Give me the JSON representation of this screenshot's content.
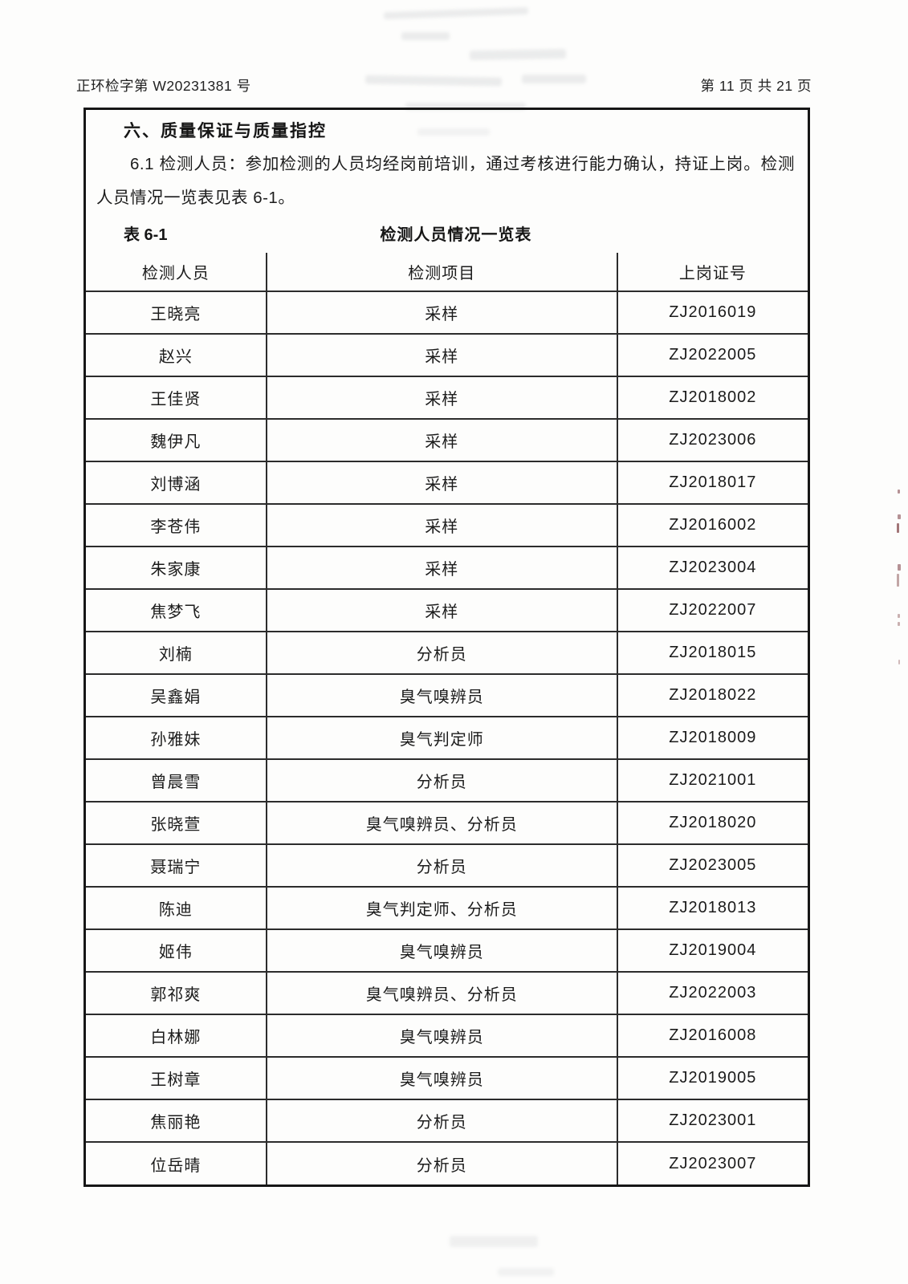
{
  "page_header": {
    "left": "正环检字第 W20231381 号",
    "right": "第 11 页 共 21 页"
  },
  "section": {
    "title": "六、质量保证与质量指控"
  },
  "paragraph": "6.1 检测人员：参加检测的人员均经岗前培训，通过考核进行能力确认，持证上岗。检测人员情况一览表见表 6-1。",
  "table_caption": {
    "label": "表 6-1",
    "title": "检测人员情况一览表"
  },
  "table": {
    "headers": [
      "检测人员",
      "检测项目",
      "上岗证号"
    ],
    "rows": [
      [
        "王晓亮",
        "采样",
        "ZJ2016019"
      ],
      [
        "赵兴",
        "采样",
        "ZJ2022005"
      ],
      [
        "王佳贤",
        "采样",
        "ZJ2018002"
      ],
      [
        "魏伊凡",
        "采样",
        "ZJ2023006"
      ],
      [
        "刘博涵",
        "采样",
        "ZJ2018017"
      ],
      [
        "李苍伟",
        "采样",
        "ZJ2016002"
      ],
      [
        "朱家康",
        "采样",
        "ZJ2023004"
      ],
      [
        "焦梦飞",
        "采样",
        "ZJ2022007"
      ],
      [
        "刘楠",
        "分析员",
        "ZJ2018015"
      ],
      [
        "吴鑫娟",
        "臭气嗅辨员",
        "ZJ2018022"
      ],
      [
        "孙雅妹",
        "臭气判定师",
        "ZJ2018009"
      ],
      [
        "曾晨雪",
        "分析员",
        "ZJ2021001"
      ],
      [
        "张晓萱",
        "臭气嗅辨员、分析员",
        "ZJ2018020"
      ],
      [
        "聂瑞宁",
        "分析员",
        "ZJ2023005"
      ],
      [
        "陈迪",
        "臭气判定师、分析员",
        "ZJ2018013"
      ],
      [
        "姬伟",
        "臭气嗅辨员",
        "ZJ2019004"
      ],
      [
        "郭祁爽",
        "臭气嗅辨员、分析员",
        "ZJ2022003"
      ],
      [
        "白林娜",
        "臭气嗅辨员",
        "ZJ2016008"
      ],
      [
        "王树章",
        "臭气嗅辨员",
        "ZJ2019005"
      ],
      [
        "焦丽艳",
        "分析员",
        "ZJ2023001"
      ],
      [
        "位岳晴",
        "分析员",
        "ZJ2023007"
      ]
    ]
  }
}
